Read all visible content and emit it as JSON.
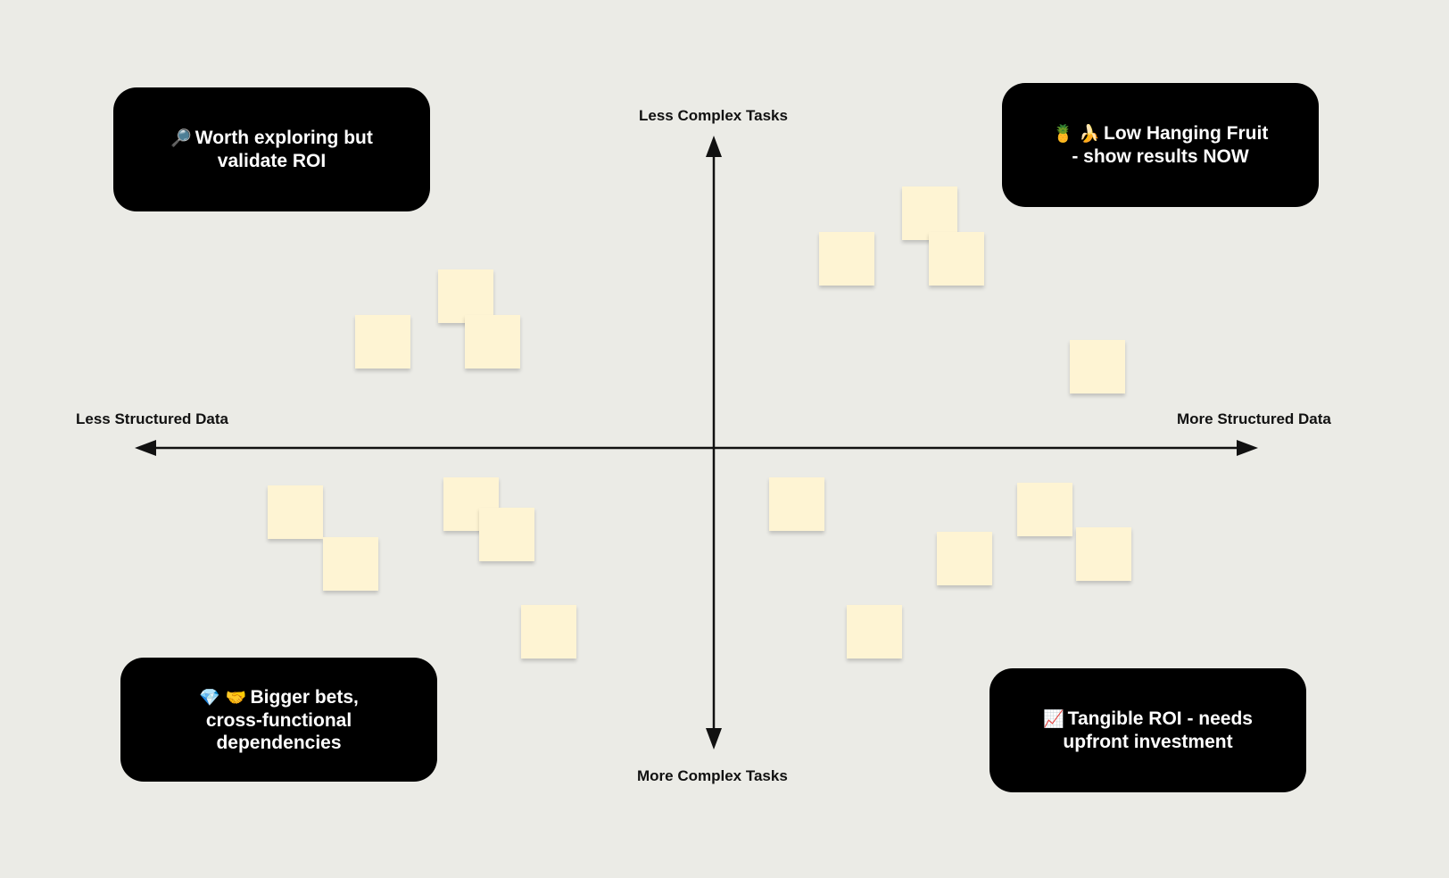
{
  "quadrants": {
    "top_left": {
      "icon": "magnifier-icon",
      "glyph": "🔎",
      "label": "Worth exploring but\nvalidate ROI"
    },
    "top_right": {
      "icon": "pineapple-banana-icon",
      "glyph": "🍍 🍌",
      "label": "Low Hanging Fruit\n- show results NOW"
    },
    "bottom_left": {
      "icon": "gem-handshake-icon",
      "glyph": "💎 🤝",
      "label": "Bigger bets,\ncross-functional\ndependencies"
    },
    "bottom_right": {
      "icon": "chart-increasing-icon",
      "glyph": "📈",
      "label": "Tangible ROI - needs\nupfront investment"
    }
  },
  "axes": {
    "top": "Less Complex Tasks",
    "bottom": "More Complex Tasks",
    "left": "Less Structured Data",
    "right": "More Structured Data"
  },
  "colors": {
    "background": "#ebebe6",
    "card": "#000000",
    "sticky": "#fef4d3",
    "axis": "#111111"
  }
}
